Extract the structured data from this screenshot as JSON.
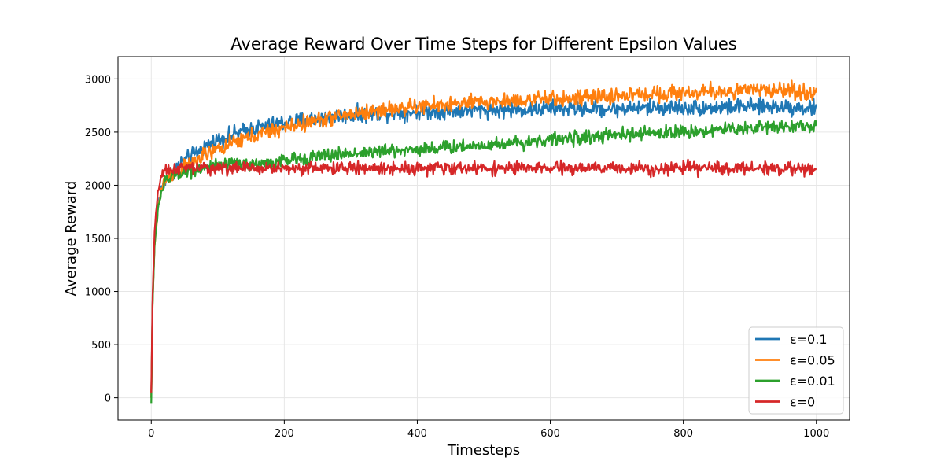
{
  "chart_data": {
    "type": "line",
    "title": "Average Reward Over Time Steps for Different Epsilon Values",
    "xlabel": "Timesteps",
    "ylabel": "Average Reward",
    "xlim": [
      -50,
      1050
    ],
    "ylim": [
      -210,
      3210
    ],
    "xticks": [
      0,
      200,
      400,
      600,
      800,
      1000
    ],
    "yticks": [
      0,
      500,
      1000,
      1500,
      2000,
      2500,
      3000
    ],
    "grid": true,
    "legend_position": "lower-right",
    "noise_note": "series are noisy; values sampled approximately from the plotted curves",
    "series": [
      {
        "name": "ε=0.1",
        "color": "#1f77b4",
        "x": [
          0,
          2,
          5,
          10,
          15,
          20,
          30,
          40,
          50,
          60,
          80,
          100,
          125,
          150,
          175,
          200,
          250,
          300,
          350,
          400,
          450,
          500,
          550,
          600,
          650,
          700,
          750,
          800,
          850,
          900,
          950,
          1000
        ],
        "y": [
          0,
          900,
          1450,
          1800,
          1950,
          2050,
          2120,
          2180,
          2230,
          2270,
          2360,
          2430,
          2480,
          2530,
          2560,
          2590,
          2630,
          2660,
          2680,
          2690,
          2700,
          2710,
          2710,
          2720,
          2720,
          2720,
          2730,
          2730,
          2730,
          2740,
          2740,
          2720
        ]
      },
      {
        "name": "ε=0.05",
        "color": "#ff7f0e",
        "x": [
          0,
          2,
          5,
          10,
          15,
          20,
          30,
          40,
          50,
          60,
          80,
          100,
          125,
          150,
          175,
          200,
          250,
          300,
          350,
          400,
          450,
          500,
          550,
          600,
          650,
          700,
          750,
          800,
          850,
          900,
          950,
          1000
        ],
        "y": [
          0,
          880,
          1430,
          1790,
          1940,
          2040,
          2100,
          2140,
          2170,
          2200,
          2280,
          2340,
          2400,
          2460,
          2500,
          2540,
          2610,
          2670,
          2710,
          2740,
          2760,
          2780,
          2800,
          2810,
          2820,
          2840,
          2860,
          2870,
          2880,
          2890,
          2900,
          2860
        ]
      },
      {
        "name": "ε=0.01",
        "color": "#2ca02c",
        "x": [
          0,
          2,
          5,
          10,
          15,
          20,
          30,
          40,
          50,
          60,
          80,
          100,
          125,
          150,
          175,
          200,
          250,
          300,
          350,
          400,
          450,
          500,
          550,
          600,
          650,
          700,
          750,
          800,
          850,
          900,
          950,
          1000
        ],
        "y": [
          -50,
          870,
          1420,
          1780,
          1930,
          2020,
          2080,
          2110,
          2130,
          2140,
          2160,
          2180,
          2190,
          2200,
          2210,
          2230,
          2270,
          2300,
          2320,
          2340,
          2360,
          2380,
          2400,
          2430,
          2450,
          2470,
          2490,
          2500,
          2520,
          2540,
          2560,
          2550
        ]
      },
      {
        "name": "ε=0",
        "color": "#d62728",
        "x": [
          0,
          2,
          5,
          10,
          15,
          20,
          30,
          40,
          50,
          60,
          80,
          100,
          125,
          150,
          175,
          200,
          250,
          300,
          350,
          400,
          450,
          500,
          550,
          600,
          650,
          700,
          750,
          800,
          850,
          900,
          950,
          1000
        ],
        "y": [
          50,
          950,
          1550,
          1950,
          2080,
          2120,
          2150,
          2160,
          2160,
          2160,
          2160,
          2160,
          2160,
          2160,
          2160,
          2160,
          2160,
          2160,
          2160,
          2160,
          2160,
          2160,
          2160,
          2160,
          2160,
          2160,
          2160,
          2160,
          2160,
          2160,
          2160,
          2140
        ]
      }
    ],
    "noise": {
      "ε=0.1": 70,
      "ε=0.05": 70,
      "ε=0.01": 60,
      "ε=0": 55
    }
  }
}
